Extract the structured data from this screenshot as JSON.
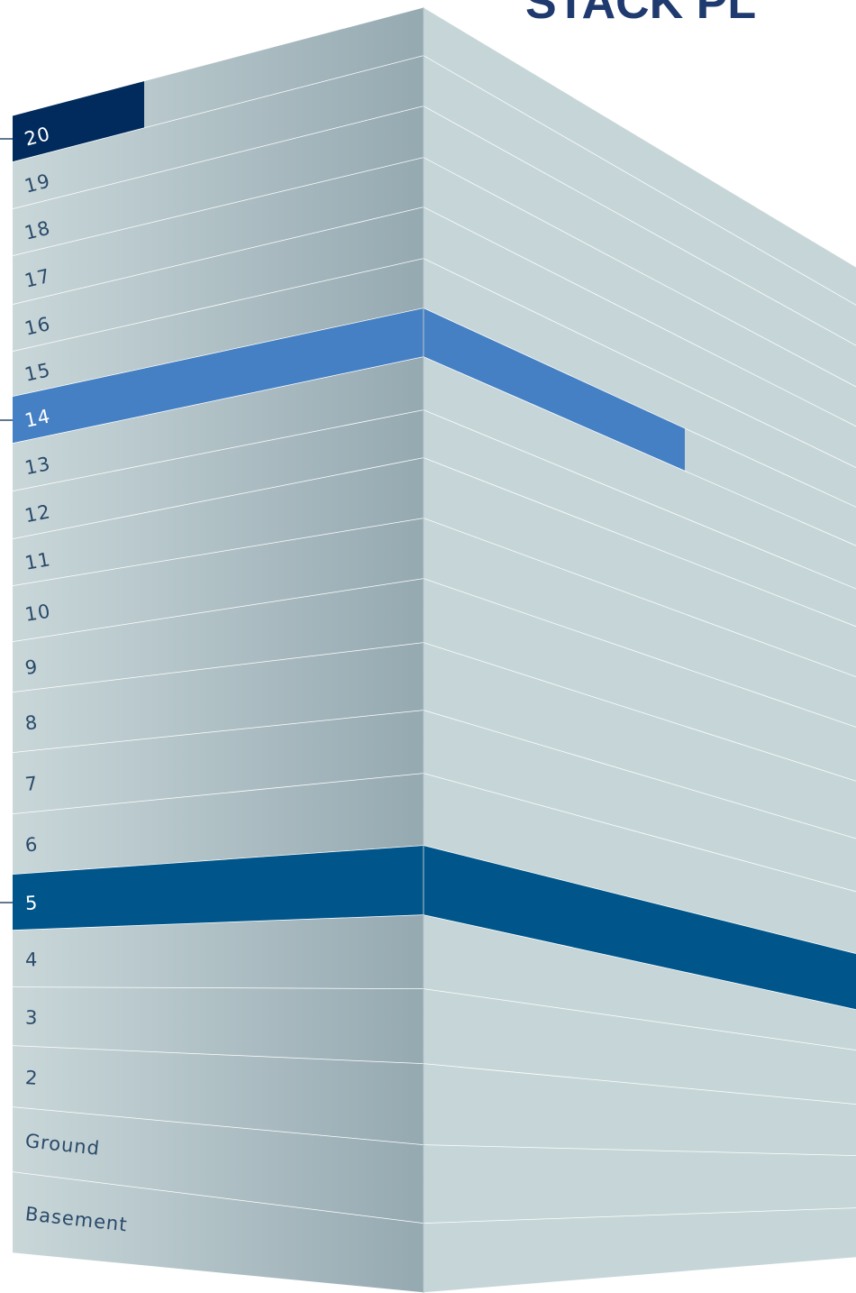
{
  "header": {
    "title": "STACK PL"
  },
  "floors": [
    {
      "label": "20",
      "color": "#002b5c"
    },
    {
      "label": "19"
    },
    {
      "label": "18"
    },
    {
      "label": "17"
    },
    {
      "label": "16"
    },
    {
      "label": "15"
    },
    {
      "label": "14",
      "color": "#4580c4"
    },
    {
      "label": "13"
    },
    {
      "label": "12"
    },
    {
      "label": "11"
    },
    {
      "label": "10"
    },
    {
      "label": "9"
    },
    {
      "label": "8"
    },
    {
      "label": "7"
    },
    {
      "label": "6"
    },
    {
      "label": "5",
      "color": "#00568b"
    },
    {
      "label": "4"
    },
    {
      "label": "3"
    },
    {
      "label": "2"
    },
    {
      "label": "Ground"
    },
    {
      "label": "Basement"
    }
  ]
}
